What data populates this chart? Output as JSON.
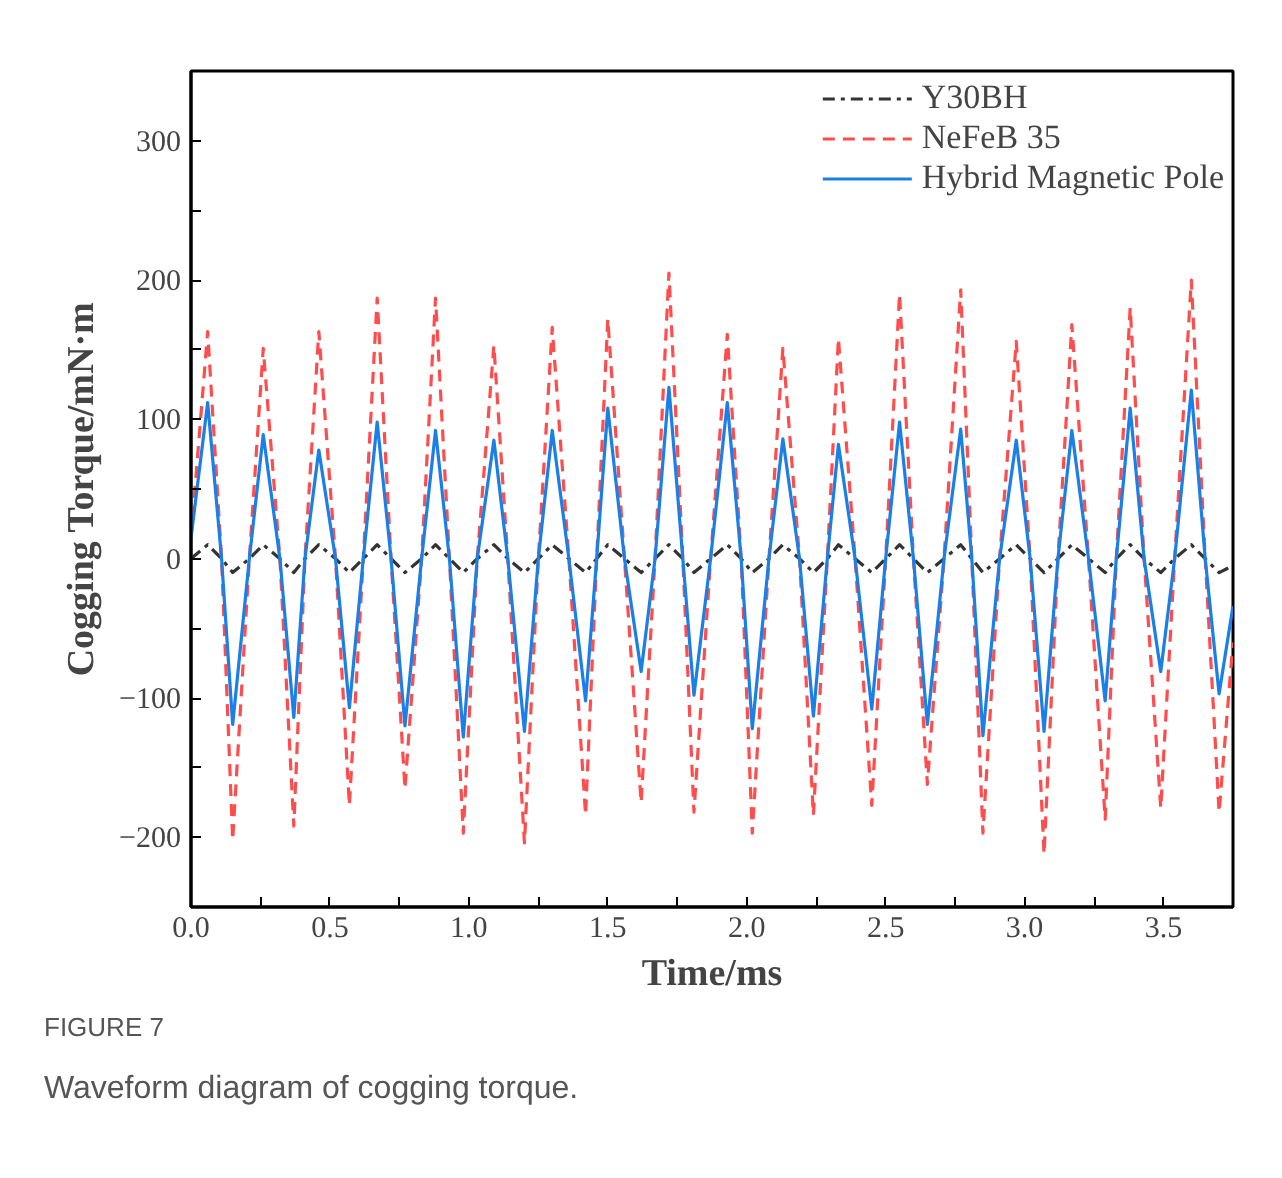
{
  "chart_data": {
    "type": "line",
    "xlabel": "Time/ms",
    "ylabel": "Cogging Torque/mN·m",
    "annotations": [
      "FIGURE 7",
      "Waveform diagram of cogging torque."
    ],
    "x": [
      0,
      0.06,
      0.11,
      0.15,
      0.21,
      0.26,
      0.32,
      0.37,
      0.41,
      0.46,
      0.52,
      0.57,
      0.62,
      0.67,
      0.72,
      0.77,
      0.83,
      0.88,
      0.93,
      0.98,
      1.03,
      1.09,
      1.14,
      1.2,
      1.25,
      1.3,
      1.36,
      1.42,
      1.46,
      1.5,
      1.56,
      1.62,
      1.67,
      1.72,
      1.77,
      1.81,
      1.87,
      1.93,
      1.98,
      2.02,
      2.08,
      2.13,
      2.19,
      2.24,
      2.29,
      2.33,
      2.39,
      2.45,
      2.5,
      2.55,
      2.6,
      2.65,
      2.71,
      2.77,
      2.81,
      2.85,
      2.91,
      2.97,
      3.02,
      3.07,
      3.12,
      3.17,
      3.23,
      3.29,
      3.33,
      3.38,
      3.43,
      3.49,
      3.54,
      3.6,
      3.65,
      3.7,
      3.75
    ],
    "series": [
      {
        "name": "Y30BH",
        "color": "#333333",
        "line_style": "dashdot",
        "values": [
          0,
          10,
          0,
          -10,
          0,
          10,
          0,
          -10,
          0,
          10,
          0,
          -10,
          0,
          10,
          0,
          -10,
          0,
          10,
          0,
          -10,
          0,
          10,
          0,
          -10,
          0,
          10,
          0,
          -10,
          0,
          10,
          0,
          -10,
          0,
          10,
          0,
          -10,
          0,
          10,
          0,
          -10,
          0,
          10,
          0,
          -10,
          0,
          10,
          0,
          -10,
          0,
          10,
          0,
          -10,
          0,
          10,
          0,
          -10,
          0,
          10,
          0,
          -10,
          0,
          10,
          0,
          -10,
          0,
          10,
          0,
          -10,
          0,
          10,
          0,
          -10,
          -5
        ]
      },
      {
        "name": "NeFeB 35",
        "color": "#ff4d4d",
        "line_style": "dashed",
        "values": [
          15,
          163,
          0,
          -202,
          0,
          151,
          0,
          -192,
          0,
          163,
          0,
          -177,
          0,
          187,
          0,
          -165,
          0,
          187,
          0,
          -197,
          0,
          153,
          0,
          -204,
          0,
          166,
          0,
          -184,
          0,
          172,
          0,
          -175,
          0,
          205,
          0,
          -182,
          0,
          161,
          0,
          -197,
          0,
          151,
          0,
          -184,
          0,
          158,
          0,
          -177,
          0,
          190,
          0,
          -162,
          0,
          193,
          0,
          -197,
          0,
          156,
          0,
          -212,
          0,
          168,
          0,
          -187,
          0,
          180,
          0,
          -179,
          0,
          200,
          0,
          -182,
          -60
        ]
      },
      {
        "name": "Hybrid Magnetic Pole",
        "color": "#1a7fe6",
        "line_style": "solid",
        "values": [
          15,
          112,
          0,
          -119,
          0,
          89,
          0,
          -114,
          0,
          78,
          0,
          -107,
          0,
          98,
          0,
          -120,
          0,
          92,
          0,
          -128,
          0,
          85,
          0,
          -124,
          0,
          92,
          0,
          -102,
          0,
          108,
          0,
          -81,
          0,
          123,
          0,
          -98,
          0,
          112,
          0,
          -122,
          0,
          86,
          0,
          -113,
          0,
          82,
          0,
          -108,
          0,
          98,
          0,
          -119,
          0,
          93,
          0,
          -127,
          0,
          85,
          0,
          -124,
          0,
          92,
          0,
          -102,
          0,
          108,
          0,
          -81,
          0,
          121,
          0,
          -97,
          -34
        ]
      }
    ],
    "xlim": [
      0,
      3.75
    ],
    "xticks": [
      {
        "value": 0,
        "label": "0.0"
      },
      {
        "value": 0.25,
        "label": null
      },
      {
        "value": 0.5,
        "label": "0.5"
      },
      {
        "value": 0.75,
        "label": null
      },
      {
        "value": 1,
        "label": "1.0"
      },
      {
        "value": 1.25,
        "label": null
      },
      {
        "value": 1.5,
        "label": "1.5"
      },
      {
        "value": 1.75,
        "label": null
      },
      {
        "value": 2,
        "label": "2.0"
      },
      {
        "value": 2.25,
        "label": null
      },
      {
        "value": 2.5,
        "label": "2.5"
      },
      {
        "value": 2.75,
        "label": null
      },
      {
        "value": 3,
        "label": "3.0"
      },
      {
        "value": 3.25,
        "label": null
      },
      {
        "value": 3.5,
        "label": "3.5"
      }
    ],
    "ylim": [
      -250,
      350
    ],
    "yticks": [
      {
        "value": -250,
        "label": null
      },
      {
        "value": -200,
        "label": "−200"
      },
      {
        "value": -150,
        "label": null
      },
      {
        "value": -100,
        "label": "−100"
      },
      {
        "value": -50,
        "label": null
      },
      0,
      {
        "value": 50,
        "label": null
      },
      100,
      {
        "value": 150,
        "label": null
      },
      200,
      {
        "value": 250,
        "label": null
      },
      300
    ],
    "grid": false,
    "legend": "top right"
  }
}
